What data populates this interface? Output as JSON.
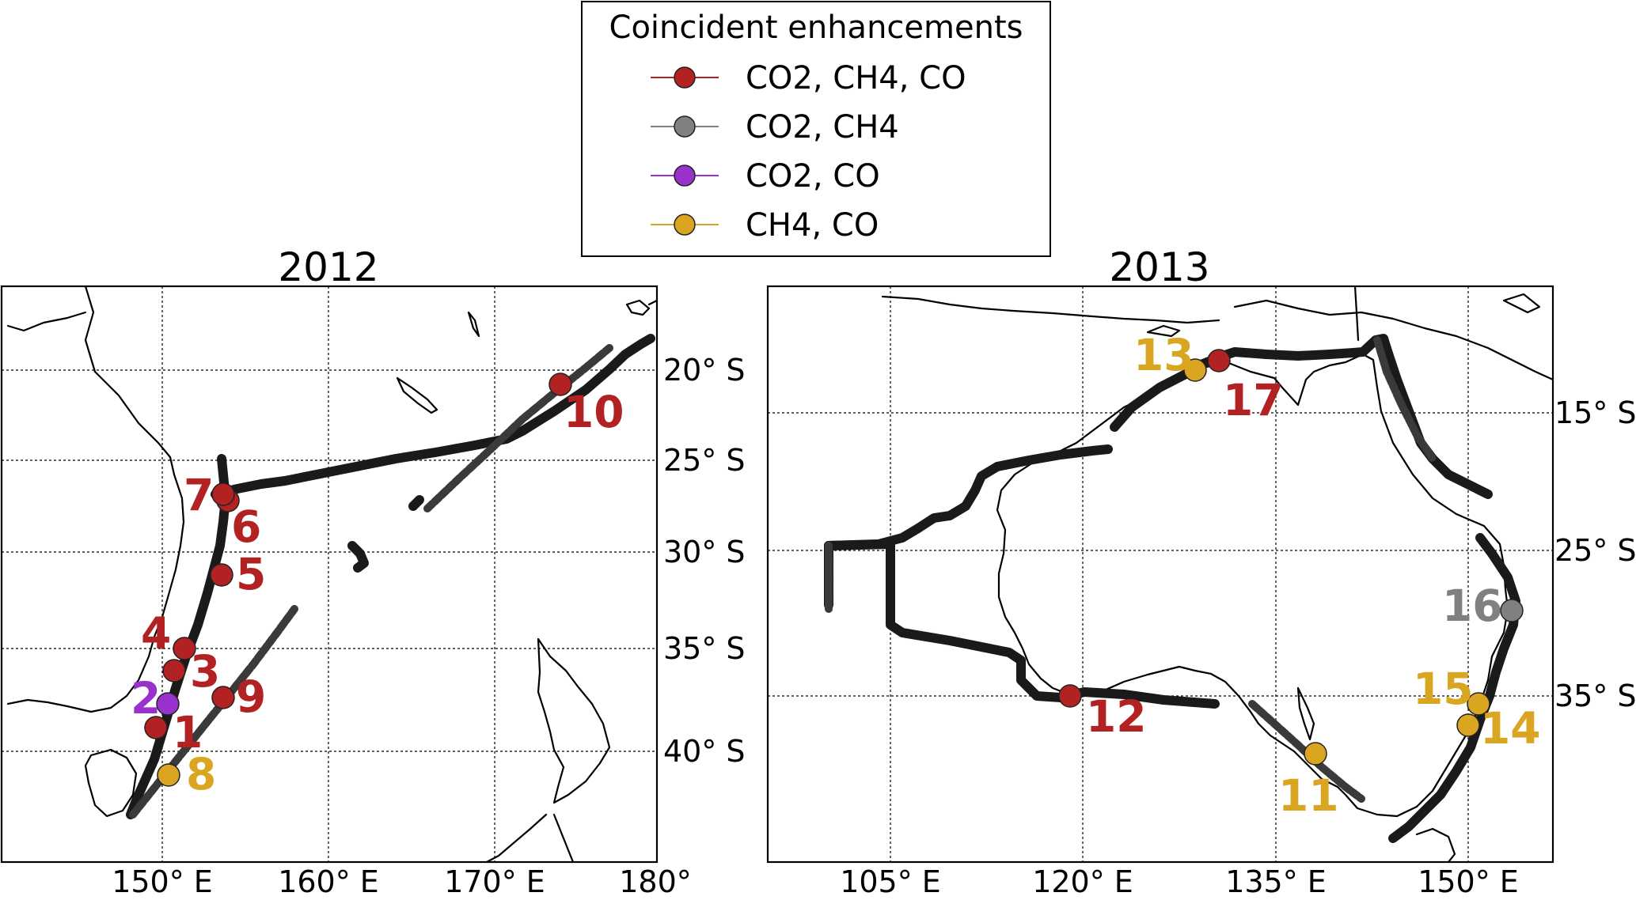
{
  "legend": {
    "title": "Coincident enhancements",
    "entries": [
      {
        "label": "CO2, CH4, CO",
        "color": "#b22222"
      },
      {
        "label": "CO2, CH4",
        "color": "#808080"
      },
      {
        "label": "CO2, CO",
        "color": "#9932cc"
      },
      {
        "label": "CH4, CO",
        "color": "#daa520"
      }
    ]
  },
  "panels": [
    {
      "title": "2012",
      "x_ticks": [
        "150° E",
        "160° E",
        "170° E",
        "180°"
      ],
      "y_ticks": [
        "20° S",
        "25° S",
        "30° S",
        "35° S",
        "40° S"
      ],
      "points": [
        {
          "label": "1",
          "color": "#b22222"
        },
        {
          "label": "2",
          "color": "#9932cc"
        },
        {
          "label": "3",
          "color": "#b22222"
        },
        {
          "label": "4",
          "color": "#b22222"
        },
        {
          "label": "5",
          "color": "#b22222"
        },
        {
          "label": "6",
          "color": "#b22222"
        },
        {
          "label": "7",
          "color": "#b22222"
        },
        {
          "label": "8",
          "color": "#daa520"
        },
        {
          "label": "9",
          "color": "#b22222"
        },
        {
          "label": "10",
          "color": "#b22222"
        }
      ]
    },
    {
      "title": "2013",
      "x_ticks": [
        "105° E",
        "120° E",
        "135° E",
        "150° E"
      ],
      "y_ticks": [
        "15° S",
        "25° S",
        "35° S"
      ],
      "points": [
        {
          "label": "11",
          "color": "#daa520"
        },
        {
          "label": "12",
          "color": "#b22222"
        },
        {
          "label": "13",
          "color": "#daa520"
        },
        {
          "label": "14",
          "color": "#daa520"
        },
        {
          "label": "15",
          "color": "#daa520"
        },
        {
          "label": "16",
          "color": "#808080"
        },
        {
          "label": "17",
          "color": "#b22222"
        }
      ]
    }
  ]
}
